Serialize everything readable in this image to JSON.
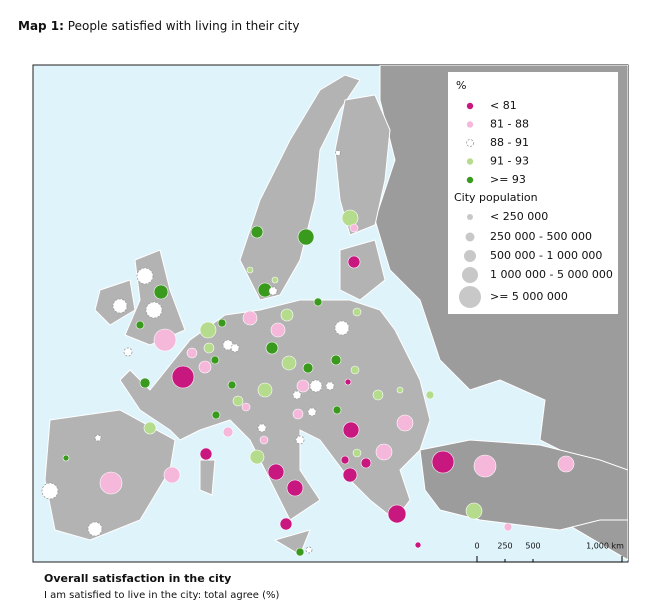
{
  "header": {
    "title_label": "Map 1:",
    "title": "People satisfied with living in their city"
  },
  "legend": {
    "title": "%",
    "classes": [
      {
        "label": "< 81",
        "color": "#c8177f"
      },
      {
        "label": "81 - 88",
        "color": "#f5b8da"
      },
      {
        "label": "88 - 91",
        "color": "#ffffff"
      },
      {
        "label": "91 - 93",
        "color": "#b5dc8c"
      },
      {
        "label": ">= 93",
        "color": "#3a9a1e"
      }
    ],
    "size_title": "City population",
    "sizes": [
      "< 250 000",
      "250 000 - 500 000",
      "500 000 - 1 000 000",
      "1 000 000 - 5 000 000",
      ">= 5 000 000"
    ]
  },
  "scale_bar": {
    "labels": [
      "0",
      "250",
      "500",
      "1,000 km"
    ]
  },
  "footer": {
    "title": "Overall satisfaction in the city",
    "subtitle": "I am satisfied to live in the city: total agree (%)"
  }
}
